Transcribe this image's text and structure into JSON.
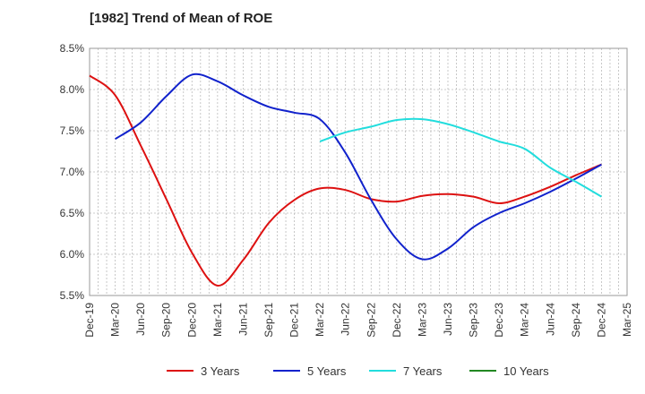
{
  "chart_data": {
    "type": "line",
    "title": "[1982]  Trend of Mean of ROE",
    "xlabel": "",
    "ylabel": "",
    "ylim": [
      5.5,
      8.5
    ],
    "y_ticks": [
      "5.5%",
      "6.0%",
      "6.5%",
      "7.0%",
      "7.5%",
      "8.0%",
      "8.5%"
    ],
    "y_tick_values": [
      5.5,
      6.0,
      6.5,
      7.0,
      7.5,
      8.0,
      8.5
    ],
    "x_ticks": [
      "Dec-19",
      "Mar-20",
      "Jun-20",
      "Sep-20",
      "Dec-20",
      "Mar-21",
      "Jun-21",
      "Sep-21",
      "Dec-21",
      "Mar-22",
      "Jun-22",
      "Sep-22",
      "Dec-22",
      "Mar-23",
      "Jun-23",
      "Sep-23",
      "Dec-23",
      "Mar-24",
      "Jun-24",
      "Sep-24",
      "Dec-24",
      "Mar-25"
    ],
    "grid": true,
    "legend_position": "bottom",
    "series": [
      {
        "name": "3 Years",
        "color": "#dd1111",
        "x": [
          "Dec-19",
          "Mar-20",
          "Jun-20",
          "Sep-20",
          "Dec-20",
          "Mar-21",
          "Jun-21",
          "Sep-21",
          "Dec-21",
          "Mar-22",
          "Jun-22",
          "Sep-22",
          "Dec-22",
          "Mar-23",
          "Jun-23",
          "Sep-23",
          "Dec-23",
          "Mar-24",
          "Jun-24",
          "Sep-24",
          "Dec-24"
        ],
        "values": [
          8.17,
          7.93,
          7.32,
          6.67,
          6.02,
          5.62,
          5.93,
          6.38,
          6.66,
          6.8,
          6.78,
          6.67,
          6.64,
          6.71,
          6.73,
          6.7,
          6.62,
          6.7,
          6.82,
          6.96,
          7.09
        ]
      },
      {
        "name": "5 Years",
        "color": "#1122cc",
        "x": [
          "Mar-20",
          "Jun-20",
          "Sep-20",
          "Dec-20",
          "Mar-21",
          "Jun-21",
          "Sep-21",
          "Dec-21",
          "Mar-22",
          "Jun-22",
          "Sep-22",
          "Dec-22",
          "Mar-23",
          "Jun-23",
          "Sep-23",
          "Dec-23",
          "Mar-24",
          "Jun-24",
          "Sep-24",
          "Dec-24"
        ],
        "values": [
          7.4,
          7.6,
          7.92,
          8.18,
          8.1,
          7.93,
          7.79,
          7.72,
          7.64,
          7.23,
          6.66,
          6.18,
          5.94,
          6.07,
          6.33,
          6.5,
          6.62,
          6.76,
          6.92,
          7.09
        ]
      },
      {
        "name": "7 Years",
        "color": "#22dddd",
        "x": [
          "Mar-22",
          "Jun-22",
          "Sep-22",
          "Dec-22",
          "Mar-23",
          "Jun-23",
          "Sep-23",
          "Dec-23",
          "Mar-24",
          "Jun-24",
          "Sep-24",
          "Dec-24"
        ],
        "values": [
          7.37,
          7.48,
          7.55,
          7.63,
          7.64,
          7.58,
          7.48,
          7.37,
          7.28,
          7.05,
          6.88,
          6.7
        ]
      },
      {
        "name": "10 Years",
        "color": "#228822",
        "x": [],
        "values": []
      }
    ]
  }
}
